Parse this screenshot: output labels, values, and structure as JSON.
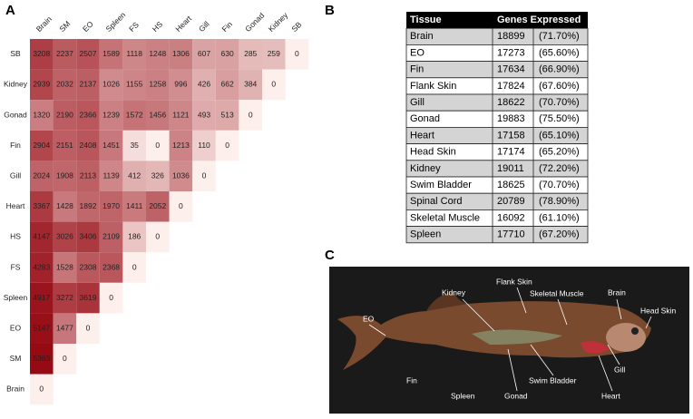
{
  "panel_a": {
    "label": "A",
    "columns": [
      "Brain",
      "SM",
      "EO",
      "Spleen",
      "FS",
      "HS",
      "Heart",
      "Gill",
      "Fin",
      "Gonad",
      "Kidney",
      "SB"
    ],
    "rows": [
      {
        "name": "SB",
        "values": [
          3208,
          2237,
          2507,
          1589,
          1118,
          1248,
          1306,
          607,
          630,
          285,
          259,
          0
        ]
      },
      {
        "name": "Kidney",
        "values": [
          2939,
          2032,
          2137,
          1026,
          1155,
          1258,
          996,
          426,
          662,
          384,
          0
        ]
      },
      {
        "name": "Gonad",
        "values": [
          1320,
          2190,
          2366,
          1239,
          1572,
          1456,
          1121,
          493,
          513,
          0
        ]
      },
      {
        "name": "Fin",
        "values": [
          2904,
          2151,
          2408,
          1451,
          35,
          0,
          1213,
          110,
          0
        ]
      },
      {
        "name": "Gill",
        "values": [
          2024,
          1908,
          2113,
          1139,
          412,
          326,
          1036,
          0
        ]
      },
      {
        "name": "Heart",
        "values": [
          3367,
          1428,
          1892,
          1970,
          1411,
          2052,
          0
        ]
      },
      {
        "name": "HS",
        "values": [
          4147,
          3026,
          3406,
          2109,
          186,
          0
        ]
      },
      {
        "name": "FS",
        "values": [
          4283,
          1528,
          2308,
          2368,
          0
        ]
      },
      {
        "name": "Spleen",
        "values": [
          4917,
          3272,
          3619,
          0
        ]
      },
      {
        "name": "EO",
        "values": [
          5147,
          1477,
          0
        ]
      },
      {
        "name": "SM",
        "values": [
          5363,
          0
        ]
      },
      {
        "name": "Brain",
        "values": [
          0
        ]
      }
    ]
  },
  "panel_b": {
    "label": "B",
    "header": [
      "Tissue",
      "Genes Expressed"
    ],
    "rows": [
      [
        "Brain",
        "18899",
        "(71.70%)"
      ],
      [
        "EO",
        "17273",
        "(65.60%)"
      ],
      [
        "Fin",
        "17634",
        "(66.90%)"
      ],
      [
        "Flank Skin",
        "17824",
        "(67.60%)"
      ],
      [
        "Gill",
        "18622",
        "(70.70%)"
      ],
      [
        "Gonad",
        "19883",
        "(75.50%)"
      ],
      [
        "Heart",
        "17158",
        "(65.10%)"
      ],
      [
        "Head Skin",
        "17174",
        "(65.20%)"
      ],
      [
        "Kidney",
        "19011",
        "(72.20%)"
      ],
      [
        "Swim Bladder",
        "18625",
        "(70.70%)"
      ],
      [
        "Spinal Cord",
        "20789",
        "(78.90%)"
      ],
      [
        "Skeletal Muscle",
        "16092",
        "(61.10%)"
      ],
      [
        "Spleen",
        "17710",
        "(67.20%)"
      ]
    ]
  },
  "panel_c": {
    "label": "C",
    "labels": [
      "EO",
      "Kidney",
      "Flank Skin",
      "Skeletal Muscle",
      "Brain",
      "Head Skin",
      "Fin",
      "Spleen",
      "Gonad",
      "Swim Bladder",
      "Gill",
      "Heart"
    ]
  }
}
